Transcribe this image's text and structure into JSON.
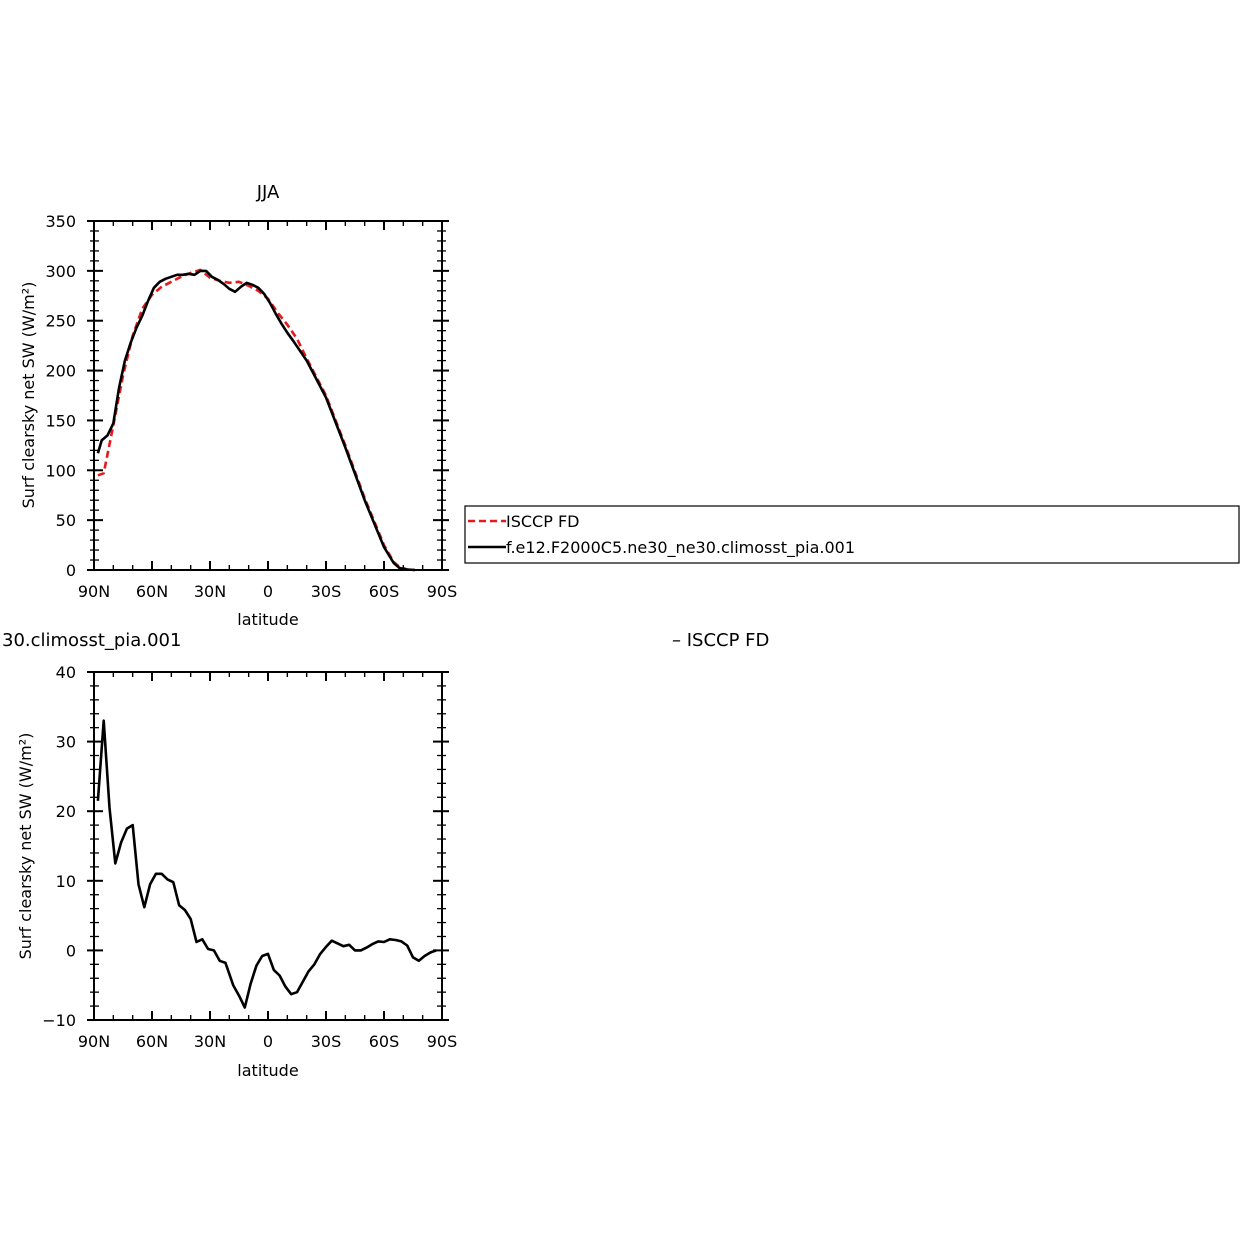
{
  "chart_data": [
    {
      "type": "line",
      "title": "JJA",
      "xlabel": "latitude",
      "ylabel": "Surf clearsky net SW (W/m²)",
      "xlim": [
        90,
        -90
      ],
      "ylim": [
        0,
        350
      ],
      "x_ticks": [
        90,
        60,
        30,
        0,
        -30,
        -60,
        -90
      ],
      "x_tick_labels": [
        "90N",
        "60N",
        "30N",
        "0",
        "30S",
        "60S",
        "90S"
      ],
      "y_ticks": [
        0,
        50,
        100,
        150,
        200,
        250,
        300,
        350
      ],
      "y_tick_labels": [
        "0",
        "50",
        "100",
        "150",
        "200",
        "250",
        "300",
        "350"
      ],
      "grid": false,
      "legend": "right",
      "series": [
        {
          "name": "ISCCP FD",
          "color": "#e41a1c",
          "dash": "dashed",
          "x": [
            88,
            85,
            80,
            75,
            70,
            65,
            60,
            55,
            50,
            45,
            40,
            35,
            30,
            25,
            20,
            15,
            10,
            5,
            0,
            -5,
            -10,
            -15,
            -20,
            -30,
            -40,
            -50,
            -60,
            -65,
            -68,
            -72,
            -76
          ],
          "y": [
            95,
            97,
            145,
            195,
            235,
            262,
            276,
            284,
            289,
            294,
            298,
            301,
            293,
            290,
            288,
            289,
            285,
            280,
            272,
            258,
            246,
            232,
            212,
            175,
            125,
            72,
            25,
            8,
            3,
            0.5,
            0
          ]
        },
        {
          "name": "f.e12.F2000C5.ne30_ne30.climosst_pia.001",
          "color": "#000000",
          "dash": "solid",
          "x": [
            88,
            86,
            83,
            80,
            77,
            74,
            71,
            68,
            65,
            62,
            59,
            56,
            53,
            50,
            47,
            44,
            41,
            38,
            35,
            32,
            29,
            26,
            23,
            20,
            17,
            14,
            11,
            8,
            5,
            2,
            -1,
            -4,
            -7,
            -10,
            -13,
            -20,
            -30,
            -40,
            -50,
            -60,
            -65,
            -68,
            -72,
            -76
          ],
          "y": [
            117,
            130,
            135,
            147,
            183,
            210,
            228,
            243,
            255,
            270,
            283,
            289,
            292,
            294,
            296,
            296,
            297,
            296,
            300,
            300,
            294,
            291,
            287,
            282,
            279,
            284,
            288,
            286,
            283,
            277,
            268,
            257,
            247,
            238,
            230,
            210,
            173,
            123,
            70,
            23,
            7,
            2,
            0.5,
            0
          ]
        }
      ]
    },
    {
      "type": "line",
      "title": "",
      "title_fragment": "30.climosst_pia.001",
      "xlabel": "latitude",
      "ylabel": "Surf clearsky net SW (W/m²)",
      "xlim": [
        90,
        -90
      ],
      "ylim": [
        -10,
        40
      ],
      "x_ticks": [
        90,
        60,
        30,
        0,
        -30,
        -60,
        -90
      ],
      "x_tick_labels": [
        "90N",
        "60N",
        "30N",
        "0",
        "30S",
        "60S",
        "90S"
      ],
      "y_ticks": [
        -10,
        0,
        10,
        20,
        30,
        40
      ],
      "y_tick_labels": [
        "−10",
        "0",
        "10",
        "20",
        "30",
        "40"
      ],
      "grid": false,
      "series": [
        {
          "name": "",
          "color": "#000000",
          "dash": "solid",
          "x": [
            88,
            85,
            82,
            79,
            76,
            73,
            70,
            67,
            64,
            61,
            58,
            55,
            52,
            49,
            46,
            43,
            40,
            37,
            34,
            31,
            28,
            25,
            22,
            18,
            15,
            12,
            9,
            6,
            3,
            0,
            -3,
            -6,
            -9,
            -12,
            -15,
            -18,
            -21,
            -24,
            -27,
            -30,
            -33,
            -36,
            -39,
            -42,
            -45,
            -48,
            -51,
            -54,
            -57,
            -60,
            -63,
            -66,
            -69,
            -72,
            -75,
            -78,
            -81,
            -84,
            -87
          ],
          "y": [
            21.5,
            33,
            20.5,
            12.5,
            15.5,
            17.5,
            18,
            9.5,
            6.2,
            9.5,
            11,
            11,
            10.2,
            9.8,
            6.5,
            5.8,
            4.5,
            1.2,
            1.6,
            0.2,
            0,
            -1.5,
            -1.8,
            -5,
            -6.5,
            -8.2,
            -4.8,
            -2.2,
            -0.8,
            -0.5,
            -2.8,
            -3.6,
            -5.2,
            -6.3,
            -6,
            -4.5,
            -3,
            -2,
            -0.5,
            0.5,
            1.4,
            1,
            0.6,
            0.8,
            0,
            0,
            0.4,
            0.9,
            1.3,
            1.2,
            1.6,
            1.5,
            1.3,
            0.7,
            -1,
            -1.5,
            -0.8,
            -0.3,
            0
          ]
        }
      ],
      "legend_fragment": "– ISCCP FD"
    }
  ]
}
